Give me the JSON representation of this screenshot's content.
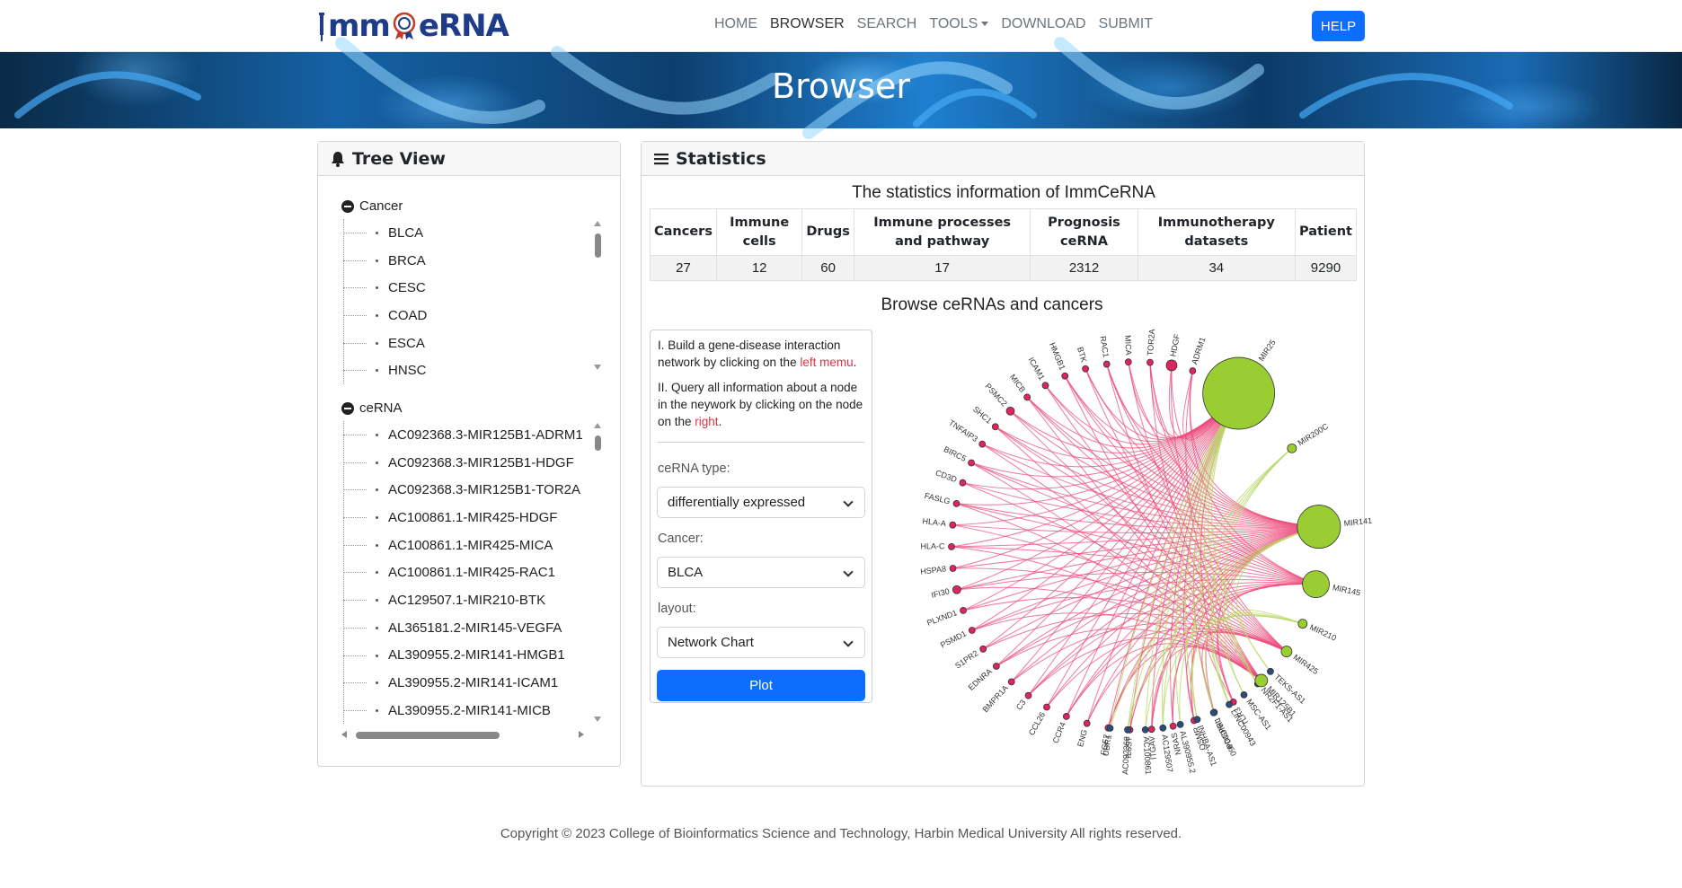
{
  "navbar": {
    "logo_text_left": "mm",
    "logo_text_right": "eRNA",
    "links": [
      {
        "label": "HOME",
        "active": false,
        "dropdown": false
      },
      {
        "label": "BROWSER",
        "active": true,
        "dropdown": false
      },
      {
        "label": "SEARCH",
        "active": false,
        "dropdown": false
      },
      {
        "label": "TOOLS",
        "active": false,
        "dropdown": true
      },
      {
        "label": "DOWNLOAD",
        "active": false,
        "dropdown": false
      },
      {
        "label": "SUBMIT",
        "active": false,
        "dropdown": false
      }
    ],
    "help_label": "HELP"
  },
  "banner": {
    "title": "Browser"
  },
  "tree": {
    "header": "Tree View",
    "header_icon": "bell-icon",
    "cancer": {
      "label": "Cancer",
      "items": [
        "BLCA",
        "BRCA",
        "CESC",
        "COAD",
        "ESCA",
        "HNSC"
      ]
    },
    "cerna": {
      "label": "ceRNA",
      "items": [
        "AC092368.3-MIR125B1-ADRM1",
        "AC092368.3-MIR125B1-HDGF",
        "AC092368.3-MIR125B1-TOR2A",
        "AC100861.1-MIR425-HDGF",
        "AC100861.1-MIR425-MICA",
        "AC100861.1-MIR425-RAC1",
        "AC129507.1-MIR210-BTK",
        "AL365181.2-MIR145-VEGFA",
        "AL390955.2-MIR141-HMGB1",
        "AL390955.2-MIR141-ICAM1",
        "AL390955.2-MIR141-MICB"
      ]
    }
  },
  "statistics": {
    "header": "Statistics",
    "header_icon": "list-icon",
    "table_title": "The statistics information of ImmCeRNA",
    "columns": [
      "Cancers",
      "Immune cells",
      "Drugs",
      "Immune processes and pathway",
      "Prognosis ceRNA",
      "Immunotherapy datasets",
      "Patient"
    ],
    "values": [
      "27",
      "12",
      "60",
      "17",
      "2312",
      "34",
      "9290"
    ],
    "browse_title": "Browse ceRNAs and cancers"
  },
  "form": {
    "instr1_a": "I. Build a gene-disease interaction network by clicking on the ",
    "instr1_b": "left memu",
    "instr1_c": ".",
    "instr2_a": "II. Query all information about a node in the neywork by clicking on the node on the ",
    "instr2_b": "right",
    "instr2_c": ".",
    "cerna_type_label": "ceRNA type:",
    "cerna_type_value": "differentially expressed",
    "cancer_label": "Cancer:",
    "cancer_value": "BLCA",
    "layout_label": "layout:",
    "layout_value": "Network Chart",
    "plot_label": "Plot"
  },
  "network": {
    "colors": {
      "mrna": "#e0245e",
      "mirna": "#9acd32",
      "lncrna": "#2a4d7f",
      "edge_pink": "#ec4b7c",
      "edge_green": "#b8d96a"
    },
    "mrna_nodes": [
      "ADRM1",
      "HDGF",
      "TOR2A",
      "MICA",
      "RAC1",
      "BTK",
      "HMGB1",
      "ICAM1",
      "MICB",
      "PSMC2",
      "SHC1",
      "TNFAIP3",
      "BIRC5",
      "CD3D",
      "FASLG",
      "HLA-A",
      "HLA-C",
      "HSPA8",
      "IFI30",
      "PLXND1",
      "PSMD1",
      "S1PR2",
      "EDNRA",
      "BMPR1A",
      "C3",
      "CCL26",
      "CCR4",
      "ENG",
      "FGF2",
      "IL6ST",
      "ITGAV",
      "NRAS",
      "OSMR",
      "PDGFRL",
      "TLR3"
    ],
    "lnc_nodes": [
      "UBR1",
      "AC092368",
      "AC100861",
      "AC129507",
      "AL390955.2",
      "INHBA-AS1",
      "LINC00460",
      "LINC00943",
      "MSC-AS1",
      "NR2F1-AS1",
      "TEKS-AS1"
    ],
    "mirna_nodes": [
      "MIR25",
      "MIR200C",
      "MIR141",
      "MIR145",
      "MIR210",
      "MIR425",
      "MIR125B1"
    ]
  },
  "footer": {
    "text": "Copyright © 2023 College of Bioinformatics Science and Technology, Harbin Medical University All rights reserved."
  }
}
